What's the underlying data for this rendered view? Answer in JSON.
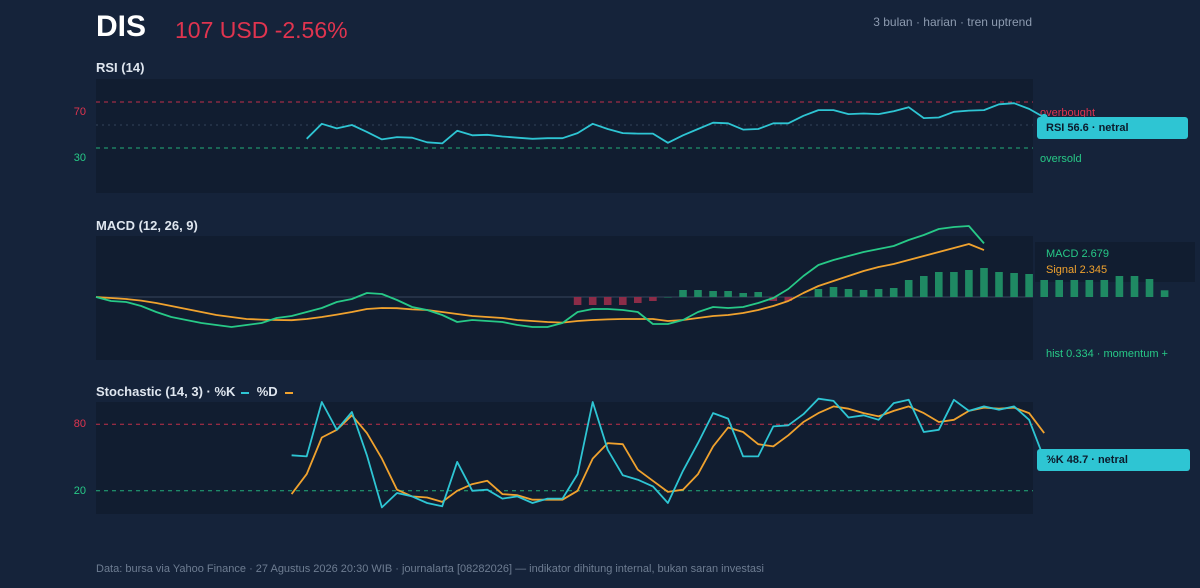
{
  "header": {
    "ticker": "DIS",
    "price_change": "107 USD -2.56%",
    "meta": "3 bulan · harian · tren uptrend"
  },
  "footer": "Data: bursa via Yahoo Finance · 27 Agustus 2026 20:30 WIB · journalarta [08282026] — indikator dihitung internal, bukan saran investasi",
  "colors": {
    "background": "#15233a",
    "panel": "#111d30",
    "rsi_line": "#2ec5d3",
    "macd_line": "#27c987",
    "signal_line": "#f0a22e",
    "hist_positive": "#1f8a63",
    "hist_negative": "#8c2c48",
    "overbought": "#e0344f",
    "oversold": "#27c987",
    "stoch_k": "#2ec5d3",
    "stoch_d": "#f0a22e"
  },
  "rsi": {
    "title": "RSI (14)",
    "tick_high": "70",
    "tick_low": "30",
    "label_overbought": "overbought",
    "label_oversold": "oversold",
    "badge": "RSI 56.6 · netral"
  },
  "macd": {
    "title": "MACD (12, 26, 9)",
    "label_macd": "MACD 2.679",
    "label_signal": "Signal 2.345",
    "label_hist": "hist 0.334 · momentum +"
  },
  "stoch": {
    "title": "Stochastic (14, 3) · %K",
    "legend_d": "%D",
    "tick_high": "80",
    "tick_low": "20",
    "badge": "%K 48.7 · netral"
  },
  "chart_data": [
    {
      "type": "line",
      "name": "RSI (14)",
      "ylim": [
        0,
        100
      ],
      "reference_lines": [
        70,
        50,
        30
      ],
      "x_start": 14,
      "series": [
        {
          "name": "RSI",
          "values": [
            38.0,
            51.0,
            47.0,
            50.0,
            44.0,
            37.5,
            39.5,
            39.0,
            35.0,
            34.0,
            45.0,
            41.0,
            41.5,
            40.0,
            39.0,
            38.0,
            38.5,
            38.5,
            43.0,
            51.0,
            46.5,
            43.0,
            42.5,
            42.5,
            34.5,
            41.0,
            46.5,
            52.0,
            51.5,
            46.0,
            46.5,
            51.5,
            51.5,
            58.0,
            63.0,
            63.0,
            59.5,
            60.0,
            59.5,
            62.0,
            65.5,
            56.0,
            56.5,
            61.5,
            62.5,
            63.0,
            68.0,
            69.0,
            64.0,
            56.6
          ]
        }
      ]
    },
    {
      "type": "line",
      "name": "MACD (12, 26, 9)",
      "ylim": [
        -3.0,
        4.0
      ],
      "zero_line": 0,
      "series": [
        {
          "name": "MACD",
          "values": [
            0.0,
            -0.2,
            -0.25,
            -0.45,
            -0.75,
            -1.0,
            -1.15,
            -1.3,
            -1.4,
            -1.5,
            -1.4,
            -1.3,
            -1.05,
            -0.95,
            -0.75,
            -0.55,
            -0.25,
            -0.1,
            0.2,
            0.15,
            -0.15,
            -0.5,
            -0.65,
            -0.9,
            -1.25,
            -1.15,
            -1.2,
            -1.25,
            -1.4,
            -1.5,
            -1.5,
            -1.3,
            -0.75,
            -0.6,
            -0.6,
            -0.65,
            -0.75,
            -1.35,
            -1.35,
            -1.15,
            -0.75,
            -0.5,
            -0.55,
            -0.5,
            -0.3,
            -0.05,
            0.4,
            1.05,
            1.6,
            1.85,
            2.05,
            2.25,
            2.4,
            2.55,
            2.85,
            3.1,
            3.4,
            3.5,
            3.55,
            2.679
          ]
        },
        {
          "name": "Signal",
          "values": [
            0.0,
            -0.05,
            -0.1,
            -0.18,
            -0.3,
            -0.45,
            -0.6,
            -0.75,
            -0.9,
            -1.0,
            -1.1,
            -1.13,
            -1.15,
            -1.16,
            -1.1,
            -1.0,
            -0.88,
            -0.75,
            -0.6,
            -0.55,
            -0.56,
            -0.62,
            -0.65,
            -0.75,
            -0.85,
            -0.95,
            -1.0,
            -1.05,
            -1.15,
            -1.2,
            -1.25,
            -1.28,
            -1.2,
            -1.15,
            -1.12,
            -1.1,
            -1.1,
            -1.1,
            -1.2,
            -1.15,
            -1.05,
            -0.95,
            -0.9,
            -0.8,
            -0.65,
            -0.45,
            -0.2,
            0.2,
            0.55,
            0.8,
            1.05,
            1.3,
            1.5,
            1.65,
            1.85,
            2.05,
            2.25,
            2.45,
            2.65,
            2.345
          ]
        },
        {
          "name": "Histogram",
          "x_start": 32,
          "values": [
            -0.4,
            -0.4,
            -0.4,
            -0.4,
            -0.3,
            -0.2,
            0.0,
            0.35,
            0.35,
            0.3,
            0.3,
            0.2,
            0.25,
            -0.2,
            -0.2,
            0.0,
            0.4,
            0.5,
            0.4,
            0.35,
            0.4,
            0.45,
            0.85,
            1.05,
            1.25,
            1.25,
            1.35,
            1.45,
            1.25,
            1.2,
            1.15,
            0.85,
            0.85,
            0.85,
            0.85,
            0.85,
            1.05,
            1.05,
            0.9,
            0.334
          ]
        }
      ]
    },
    {
      "type": "line",
      "name": "Stochastic (14, 3)",
      "ylim": [
        0,
        100
      ],
      "reference_lines": [
        80,
        20
      ],
      "x_start": 13,
      "series": [
        {
          "name": "%K",
          "values": [
            52,
            51,
            100,
            75,
            91,
            52,
            5,
            18,
            15,
            9,
            6,
            46,
            20,
            21,
            13,
            15,
            9,
            13,
            13,
            35,
            100,
            57,
            34,
            30,
            24,
            9,
            38,
            63,
            90,
            85,
            51,
            51,
            78,
            79,
            89,
            103,
            101,
            86,
            88,
            84,
            99,
            102,
            73,
            75,
            102,
            92,
            96,
            93,
            96,
            84,
            48.7
          ]
        },
        {
          "name": "%D",
          "values": [
            17,
            35,
            68,
            75,
            88,
            72,
            49,
            21,
            15,
            14,
            10,
            20,
            26,
            29,
            17,
            16,
            12,
            12,
            12,
            20,
            49,
            63,
            62,
            39,
            29,
            19,
            21,
            35,
            60,
            77,
            73,
            62,
            60,
            70,
            82,
            90,
            96,
            94,
            90,
            87,
            92,
            96,
            90,
            82,
            84,
            92,
            95,
            94,
            95,
            90,
            72
          ]
        }
      ]
    }
  ]
}
